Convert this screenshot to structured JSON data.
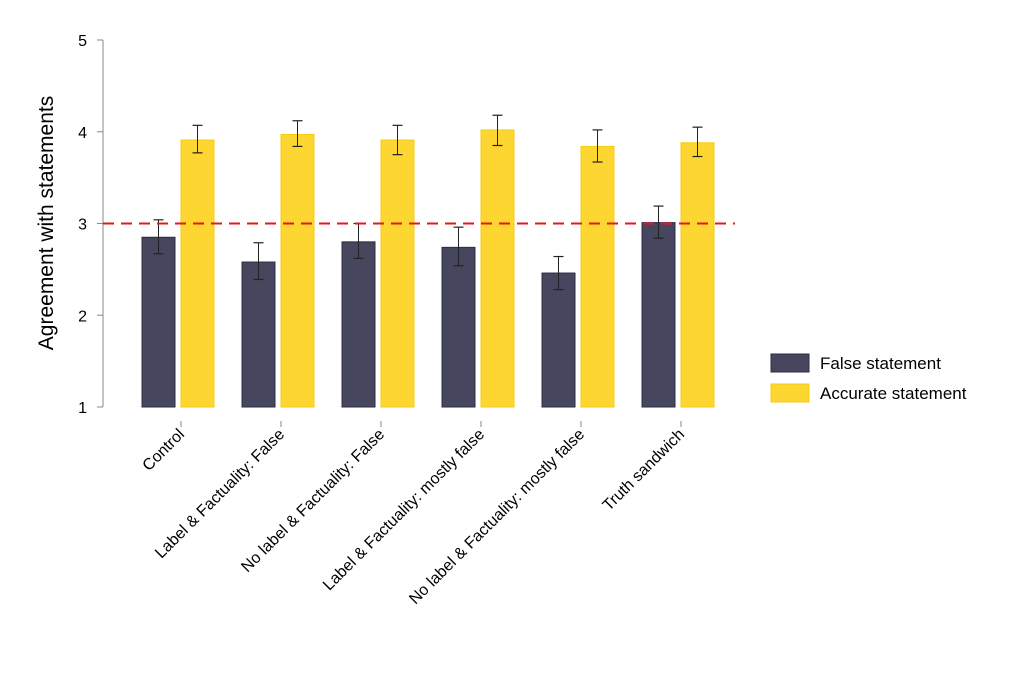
{
  "chart_data": {
    "type": "bar",
    "title": "",
    "xlabel": "",
    "ylabel": "Agreement with statements",
    "ylim": [
      1,
      5
    ],
    "yticks": [
      "1",
      "2",
      "3",
      "4",
      "5"
    ],
    "grid": false,
    "legend_position": "right",
    "reference_line": {
      "y": 3,
      "color": "#e8151b",
      "style": "dashed"
    },
    "categories": [
      "Control",
      "Label & Factuality: False",
      "No label & Factuality: False",
      "Label & Factuality: mostly false",
      "No label & Factuality: mostly false",
      "Truth sandwich"
    ],
    "series": [
      {
        "name": "False statement",
        "color": "#46465e",
        "values": [
          2.85,
          2.58,
          2.8,
          2.74,
          2.46,
          3.01
        ],
        "error_low": [
          2.67,
          2.39,
          2.62,
          2.54,
          2.28,
          2.84
        ],
        "error_high": [
          3.04,
          2.79,
          3.0,
          2.96,
          2.64,
          3.19
        ]
      },
      {
        "name": "Accurate statement",
        "color": "#fed631",
        "values": [
          3.91,
          3.97,
          3.91,
          4.02,
          3.84,
          3.88
        ],
        "error_low": [
          3.77,
          3.84,
          3.75,
          3.85,
          3.67,
          3.73
        ],
        "error_high": [
          4.07,
          4.12,
          4.07,
          4.18,
          4.02,
          4.05
        ]
      }
    ]
  }
}
